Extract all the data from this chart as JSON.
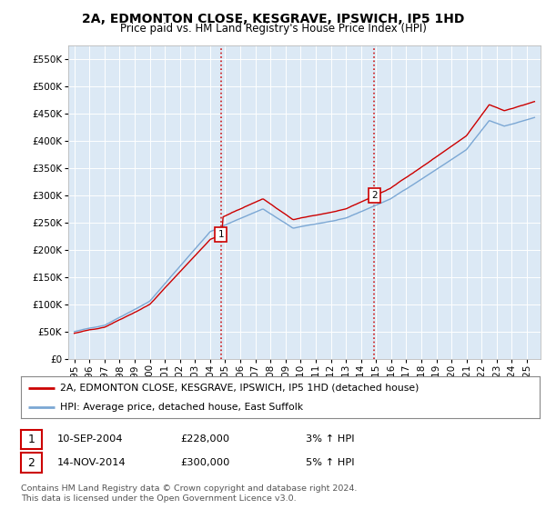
{
  "title": "2A, EDMONTON CLOSE, KESGRAVE, IPSWICH, IP5 1HD",
  "subtitle": "Price paid vs. HM Land Registry's House Price Index (HPI)",
  "ylim": [
    0,
    575000
  ],
  "yticks": [
    0,
    50000,
    100000,
    150000,
    200000,
    250000,
    300000,
    350000,
    400000,
    450000,
    500000,
    550000
  ],
  "background_color": "#ffffff",
  "plot_bg_color": "#dce9f5",
  "grid_color": "#ffffff",
  "line1_color": "#cc0000",
  "line2_color": "#7ba7d4",
  "marker1": {
    "date_year": 2004.71,
    "value": 228000,
    "label": "1"
  },
  "marker2": {
    "date_year": 2014.88,
    "value": 300000,
    "label": "2"
  },
  "vline_color": "#cc0000",
  "legend_line1": "2A, EDMONTON CLOSE, KESGRAVE, IPSWICH, IP5 1HD (detached house)",
  "legend_line2": "HPI: Average price, detached house, East Suffolk",
  "table_rows": [
    {
      "num": "1",
      "date": "10-SEP-2004",
      "price": "£228,000",
      "hpi": "3% ↑ HPI"
    },
    {
      "num": "2",
      "date": "14-NOV-2014",
      "price": "£300,000",
      "hpi": "5% ↑ HPI"
    }
  ],
  "footer": "Contains HM Land Registry data © Crown copyright and database right 2024.\nThis data is licensed under the Open Government Licence v3.0.",
  "title_fontsize": 10,
  "subtitle_fontsize": 8.5,
  "tick_fontsize": 7.5
}
